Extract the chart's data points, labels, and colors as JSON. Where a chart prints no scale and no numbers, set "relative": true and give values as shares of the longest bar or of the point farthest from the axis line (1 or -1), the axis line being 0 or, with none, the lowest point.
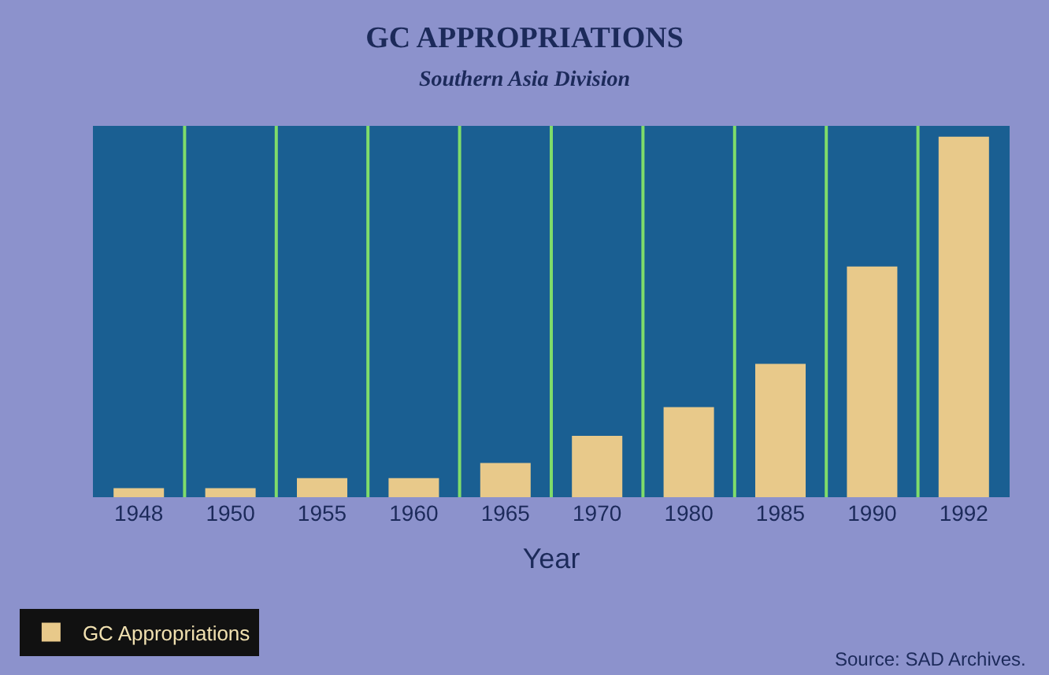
{
  "chart_data": {
    "type": "bar",
    "title": "GC APPROPRIATIONS",
    "subtitle": "Southern Asia Division",
    "xlabel": "Year",
    "categories": [
      "1948",
      "1950",
      "1955",
      "1960",
      "1965",
      "1970",
      "1980",
      "1985",
      "1990",
      "1992"
    ],
    "relative": true,
    "series": [
      {
        "name": "GC Appropriations",
        "color": "#e8c98a",
        "values": [
          0.025,
          0.025,
          0.053,
          0.053,
          0.095,
          0.17,
          0.25,
          0.37,
          0.64,
          1
        ]
      }
    ],
    "grid": "x",
    "legend": "bottom left",
    "annotations": [
      "Source: SAD Archives."
    ]
  }
}
